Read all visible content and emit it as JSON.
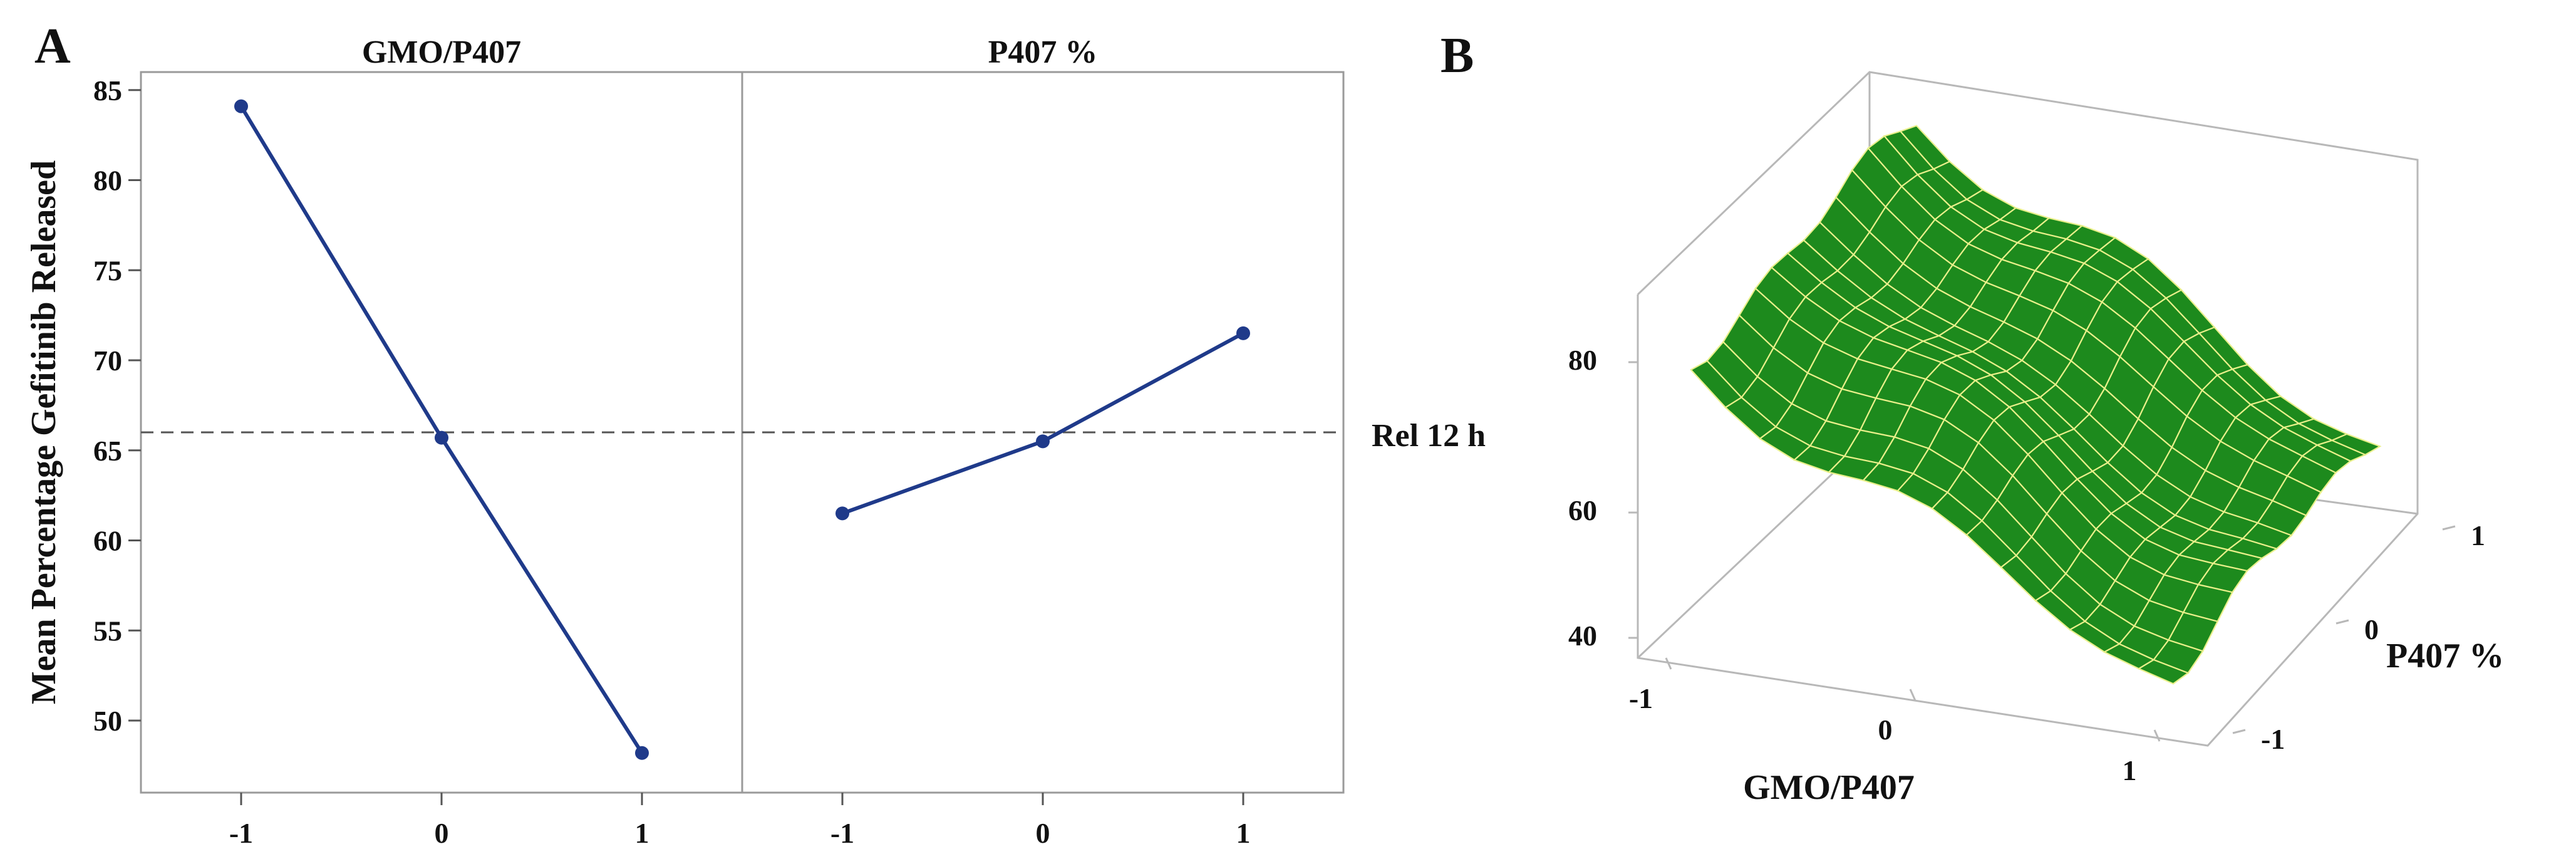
{
  "panels": {
    "a_label": "A",
    "b_label": "B"
  },
  "chart_data": [
    {
      "type": "line",
      "panel": "A",
      "ylabel": "Mean Percentage Gefitinib Released",
      "ylim": [
        46,
        86
      ],
      "yticks": [
        50,
        55,
        60,
        65,
        70,
        75,
        80,
        85
      ],
      "reference_line": {
        "value": 66,
        "label": "Rel 12 h",
        "style": "dashed"
      },
      "line_color": "#1f3a8a",
      "facets": [
        {
          "title": "GMO/P407",
          "x": [
            -1,
            0,
            1
          ],
          "xticks": [
            "-1",
            "0",
            "1"
          ],
          "values": [
            84.1,
            65.7,
            48.2
          ]
        },
        {
          "title": "P407 %",
          "x": [
            -1,
            0,
            1
          ],
          "xticks": [
            "-1",
            "0",
            "1"
          ],
          "values": [
            61.5,
            65.5,
            71.5
          ]
        }
      ]
    },
    {
      "type": "surface",
      "panel": "B",
      "xlabel": "GMO/P407",
      "ylabel": "P407 %",
      "zticks": [
        "40",
        "60",
        "80"
      ],
      "zlim": [
        35,
        95
      ],
      "xticks": [
        "-1",
        "0",
        "1"
      ],
      "yticks": [
        "-1",
        "0",
        "1"
      ],
      "surface_color": "#1d8a1d",
      "grid_color": "#e9f08a"
    }
  ]
}
